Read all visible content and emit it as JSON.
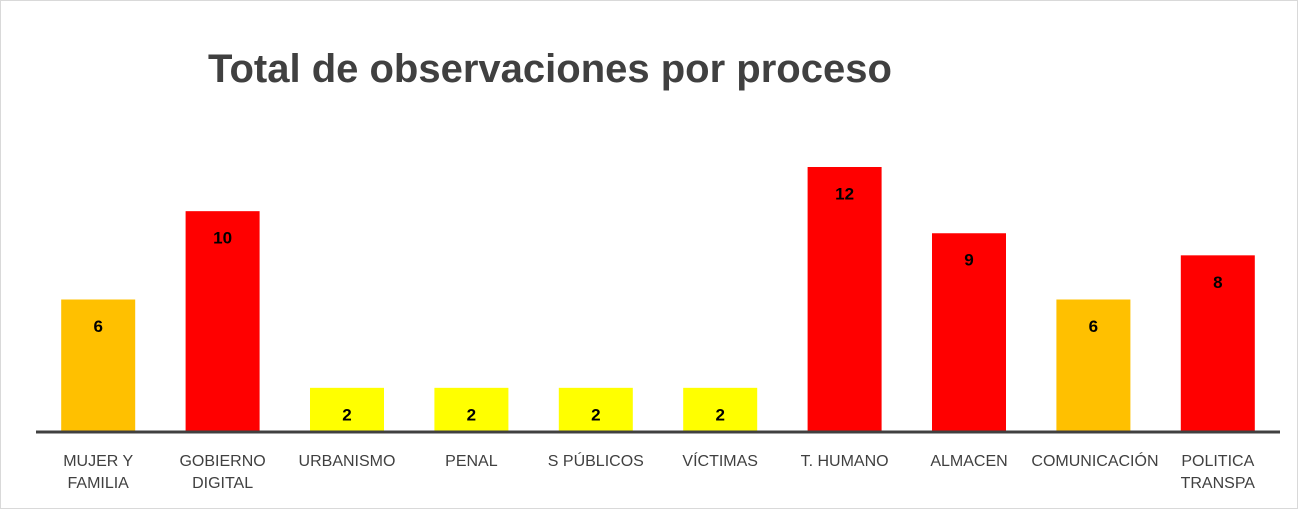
{
  "chart_data": {
    "type": "bar",
    "title": "Total de observaciones por proceso",
    "categories": [
      "MUJER Y FAMILIA",
      "GOBIERNO DIGITAL",
      "URBANISMO",
      "PENAL",
      "S PÚBLICOS",
      "VÍCTIMAS",
      "T. HUMANO",
      "ALMACEN",
      "COMUNICACIÓN",
      "POLITICA TRANSPA"
    ],
    "values": [
      6,
      10,
      2,
      2,
      2,
      2,
      12,
      9,
      6,
      8
    ],
    "colors": [
      "#FFC000",
      "#FF0000",
      "#FFFF00",
      "#FFFF00",
      "#FFFF00",
      "#FFFF00",
      "#FF0000",
      "#FF0000",
      "#FFC000",
      "#FF0000"
    ],
    "ylim": [
      0,
      12
    ]
  }
}
